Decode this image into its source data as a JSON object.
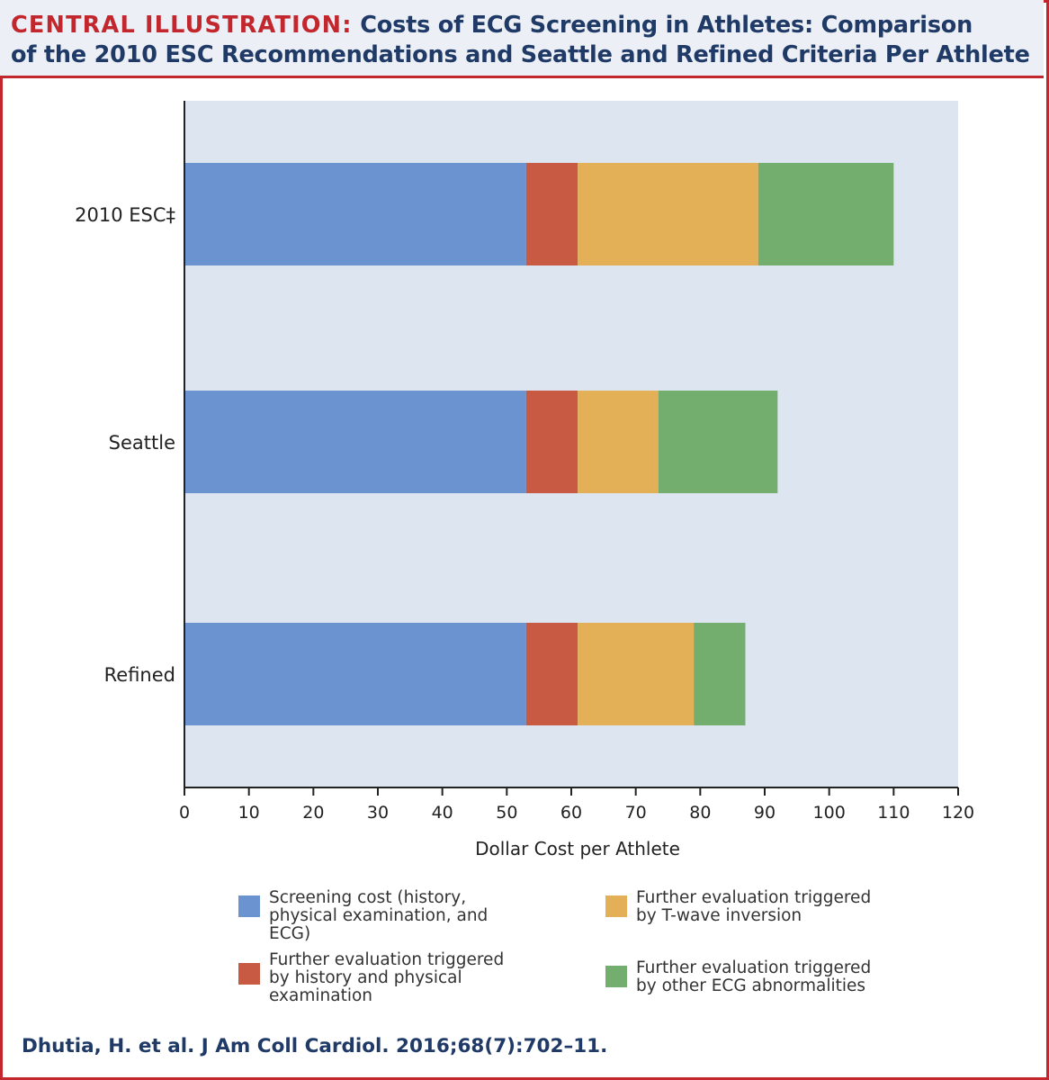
{
  "header": {
    "tag": "CENTRAL ILLUSTRATION:",
    "title_line1": "Costs of ECG Screening in Athletes: Comparison",
    "title_line2": "of the 2010 ESC Recommendations and Seattle and Refined Criteria Per Athlete"
  },
  "chart_data": {
    "type": "bar",
    "orientation": "horizontal",
    "stacked": true,
    "categories": [
      "2010 ESC‡",
      "Seattle",
      "Refined"
    ],
    "series": [
      {
        "name": "Screening cost (history, physical examination, and ECG)",
        "color": "#6a93cf",
        "values": [
          53,
          53,
          53
        ]
      },
      {
        "name": "Further evaluation triggered by history and physical examination",
        "color": "#c85a44",
        "values": [
          8,
          8,
          8
        ]
      },
      {
        "name": "Further evaluation triggered by T-wave inversion",
        "color": "#e3b057",
        "values": [
          28,
          12.5,
          18
        ]
      },
      {
        "name": "Further evaluation triggered by other ECG abnormalities",
        "color": "#73ae6e",
        "values": [
          21,
          18.5,
          8
        ]
      }
    ],
    "xlabel": "Dollar Cost per Athlete",
    "ylabel": "",
    "xlim": [
      0,
      120
    ],
    "xticks": [
      0,
      10,
      20,
      30,
      40,
      50,
      60,
      70,
      80,
      90,
      100,
      110,
      120
    ],
    "grid": false,
    "plot_background": "#dde5f1",
    "legend_placement": "bottom"
  },
  "legend": {
    "items": [
      {
        "line1": "Screening cost (history,",
        "line2": "physical examination, and ECG)",
        "line3": "",
        "color": "#6a93cf"
      },
      {
        "line1": "Further evaluation triggered",
        "line2": "by T-wave inversion",
        "line3": "",
        "color": "#e3b057"
      },
      {
        "line1": "Further evaluation triggered",
        "line2": "by history and physical",
        "line3": "examination",
        "color": "#c85a44"
      },
      {
        "line1": "Further evaluation triggered",
        "line2": "by other ECG abnormalities",
        "line3": "",
        "color": "#73ae6e"
      }
    ]
  },
  "citation": "Dhutia, H. et al. J Am Coll Cardiol. 2016;68(7):702–11."
}
